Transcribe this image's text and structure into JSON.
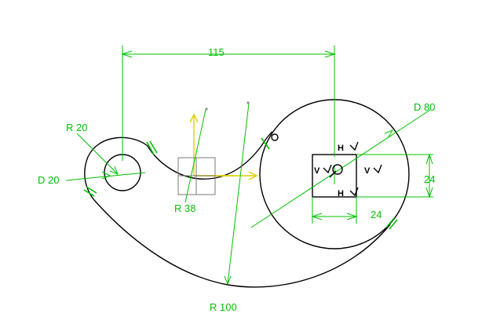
{
  "colors": {
    "geometry": "#000000",
    "dimension": "#00c000",
    "axis": "#e0d000",
    "background": "#ffffff"
  },
  "dimensions": {
    "horizontal_distance": "115",
    "left_radius": "R 20",
    "left_diameter": "D 20",
    "fillet_radius": "R 38",
    "large_arc_radius": "R 100",
    "right_diameter": "D 80",
    "square_height": "24",
    "square_width": "24"
  },
  "constraints": {
    "top": "H",
    "bottom": "H",
    "left": "V",
    "right": "V"
  },
  "icons": {
    "tangent": "tangency-icon",
    "axis": "sketch-axis-icon",
    "point": "point-icon"
  }
}
